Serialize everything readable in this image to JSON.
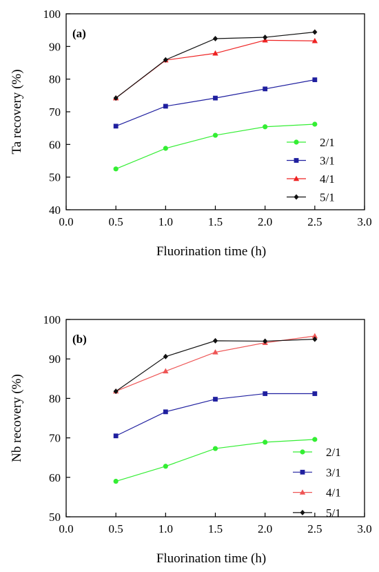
{
  "chart_data": [
    {
      "type": "line",
      "panel_label": "(a)",
      "xlabel": "Fluorination time (h)",
      "ylabel": "Ta recovery (%)",
      "xlim": [
        0.0,
        3.0
      ],
      "ylim": [
        40,
        100
      ],
      "xticks": [
        0.0,
        0.5,
        1.0,
        1.5,
        2.0,
        2.5,
        3.0
      ],
      "xtick_labels": [
        "0.0",
        "0.5",
        "1.0",
        "1.5",
        "2.0",
        "2.5",
        "3.0"
      ],
      "yticks": [
        40,
        50,
        60,
        70,
        80,
        90,
        100
      ],
      "ytick_labels": [
        "40",
        "50",
        "60",
        "70",
        "80",
        "90",
        "100"
      ],
      "x": [
        0.5,
        1.0,
        1.5,
        2.0,
        2.5
      ],
      "grid": false,
      "legend_position": "right",
      "series": [
        {
          "name": "2/1",
          "color": "#33ee33",
          "marker": "circle",
          "values": [
            52.5,
            58.8,
            62.8,
            65.4,
            66.2
          ]
        },
        {
          "name": "3/1",
          "color": "#1f1f9f",
          "marker": "square",
          "values": [
            65.6,
            71.7,
            74.2,
            77.0,
            79.8
          ]
        },
        {
          "name": "4/1",
          "color": "#ee2222",
          "marker": "triangle",
          "values": [
            74.2,
            85.8,
            87.9,
            91.9,
            91.7
          ]
        },
        {
          "name": "5/1",
          "color": "#111111",
          "marker": "diamond",
          "values": [
            74.2,
            85.9,
            92.4,
            92.8,
            94.4
          ]
        }
      ]
    },
    {
      "type": "line",
      "panel_label": "(b)",
      "xlabel": "Fluorination time (h)",
      "ylabel": "Nb recovery (%)",
      "xlim": [
        0.0,
        3.0
      ],
      "ylim": [
        50,
        100
      ],
      "xticks": [
        0.0,
        0.5,
        1.0,
        1.5,
        2.0,
        2.5,
        3.0
      ],
      "xtick_labels": [
        "0.0",
        "0.5",
        "1.0",
        "1.5",
        "2.0",
        "2.5",
        "3.0"
      ],
      "yticks": [
        50,
        60,
        70,
        80,
        90,
        100
      ],
      "ytick_labels": [
        "50",
        "60",
        "70",
        "80",
        "90",
        "100"
      ],
      "x": [
        0.5,
        1.0,
        1.5,
        2.0,
        2.5
      ],
      "grid": false,
      "legend_position": "bottom-right",
      "series": [
        {
          "name": "2/1",
          "color": "#33ee33",
          "marker": "circle",
          "values": [
            59.0,
            62.8,
            67.3,
            68.9,
            69.6
          ]
        },
        {
          "name": "3/1",
          "color": "#1f1f9f",
          "marker": "square",
          "values": [
            70.5,
            76.6,
            79.8,
            81.2,
            81.2
          ]
        },
        {
          "name": "4/1",
          "color": "#ee5555",
          "marker": "triangle",
          "values": [
            81.8,
            86.9,
            91.7,
            94.1,
            95.8
          ]
        },
        {
          "name": "5/1",
          "color": "#111111",
          "marker": "diamond",
          "values": [
            81.8,
            90.6,
            94.6,
            94.5,
            95.0
          ]
        }
      ]
    }
  ]
}
